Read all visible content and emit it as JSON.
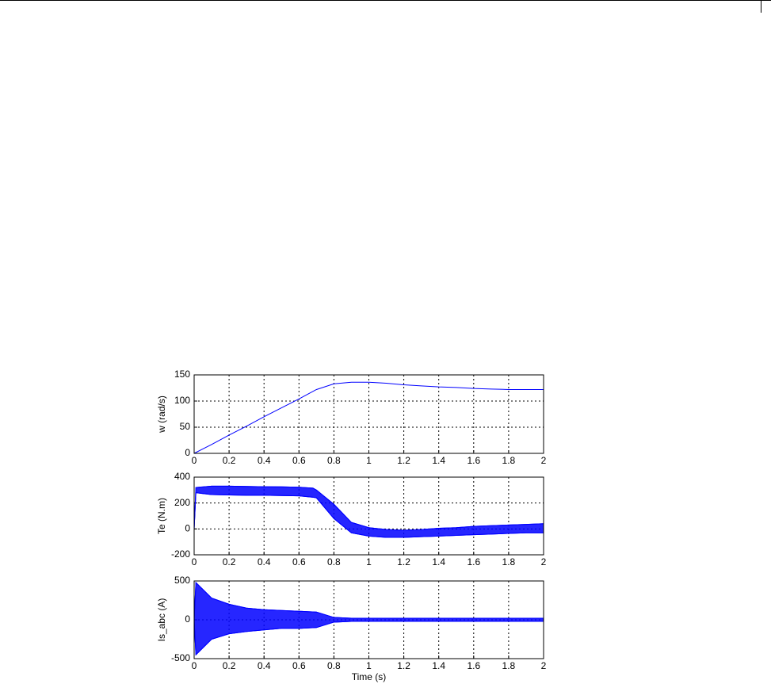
{
  "chart_data": [
    {
      "type": "line",
      "ylabel": "w (rad/s)",
      "color": "#0000ff",
      "grid": true,
      "x": [
        0,
        0.1,
        0.2,
        0.3,
        0.4,
        0.5,
        0.6,
        0.7,
        0.8,
        0.9,
        1.0,
        1.1,
        1.2,
        1.3,
        1.4,
        1.5,
        1.6,
        1.7,
        1.8,
        1.9,
        2.0
      ],
      "values": [
        0,
        17,
        35,
        52,
        70,
        87,
        104,
        122,
        133,
        136,
        136,
        134,
        131,
        129,
        127,
        126,
        124,
        123,
        122,
        122,
        122
      ],
      "xlim": [
        0,
        2
      ],
      "xticks": [
        0,
        0.2,
        0.4,
        0.6,
        0.8,
        1,
        1.2,
        1.4,
        1.6,
        1.8,
        2
      ],
      "ylim": [
        0,
        150
      ],
      "yticks": [
        0,
        50,
        100,
        150
      ]
    },
    {
      "type": "band",
      "ylabel": "Te (N.m)",
      "color": "#0000ff",
      "grid": true,
      "x": [
        0,
        0.01,
        0.1,
        0.2,
        0.3,
        0.4,
        0.5,
        0.6,
        0.68,
        0.7,
        0.8,
        0.9,
        1.0,
        1.1,
        1.2,
        1.3,
        1.4,
        1.5,
        1.6,
        1.7,
        1.8,
        1.9,
        2.0
      ],
      "low": [
        0,
        280,
        265,
        262,
        260,
        260,
        258,
        255,
        245,
        240,
        80,
        -30,
        -55,
        -65,
        -65,
        -60,
        -55,
        -50,
        -45,
        -40,
        -35,
        -30,
        -30
      ],
      "high": [
        0,
        320,
        330,
        330,
        328,
        326,
        325,
        322,
        315,
        300,
        190,
        50,
        10,
        -5,
        -10,
        -5,
        5,
        10,
        20,
        25,
        30,
        35,
        40
      ],
      "xlim": [
        0,
        2
      ],
      "xticks": [
        0,
        0.2,
        0.4,
        0.6,
        0.8,
        1,
        1.2,
        1.4,
        1.6,
        1.8,
        2
      ],
      "ylim": [
        -200,
        400
      ],
      "yticks": [
        -200,
        0,
        200,
        400
      ]
    },
    {
      "type": "band",
      "ylabel": "Is_abc (A)",
      "xlabel": "Time (s)",
      "color": "#0000ff",
      "grid": true,
      "x": [
        0,
        0.01,
        0.1,
        0.2,
        0.3,
        0.4,
        0.5,
        0.6,
        0.7,
        0.8,
        0.9,
        1.0,
        1.2,
        1.4,
        1.6,
        1.8,
        2.0
      ],
      "low": [
        0,
        -450,
        -250,
        -180,
        -150,
        -130,
        -110,
        -110,
        -100,
        -30,
        -20,
        -20,
        -20,
        -20,
        -20,
        -20,
        -20
      ],
      "high": [
        0,
        480,
        280,
        200,
        150,
        130,
        120,
        110,
        100,
        30,
        20,
        20,
        20,
        20,
        20,
        20,
        20
      ],
      "xlim": [
        0,
        2
      ],
      "xticks": [
        0,
        0.2,
        0.4,
        0.6,
        0.8,
        1,
        1.2,
        1.4,
        1.6,
        1.8,
        2
      ],
      "ylim": [
        -500,
        500
      ],
      "yticks": [
        -500,
        0,
        500
      ]
    }
  ]
}
